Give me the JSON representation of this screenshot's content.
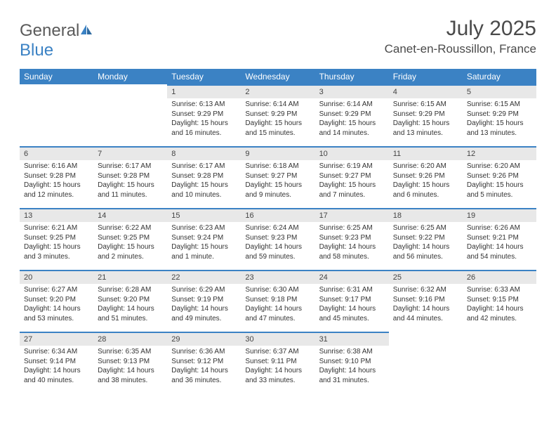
{
  "brand": {
    "name_a": "General",
    "name_b": "Blue"
  },
  "title": "July 2025",
  "location": "Canet-en-Roussillon, France",
  "colors": {
    "header_bg": "#3b82c4",
    "header_text": "#ffffff",
    "daynum_bg": "#e8e8e8",
    "daynum_border": "#3b82c4",
    "body_text": "#333333",
    "page_bg": "#ffffff"
  },
  "weekdays": [
    "Sunday",
    "Monday",
    "Tuesday",
    "Wednesday",
    "Thursday",
    "Friday",
    "Saturday"
  ],
  "weeks": [
    [
      null,
      null,
      {
        "n": "1",
        "sr": "Sunrise: 6:13 AM",
        "ss": "Sunset: 9:29 PM",
        "d1": "Daylight: 15 hours",
        "d2": "and 16 minutes."
      },
      {
        "n": "2",
        "sr": "Sunrise: 6:14 AM",
        "ss": "Sunset: 9:29 PM",
        "d1": "Daylight: 15 hours",
        "d2": "and 15 minutes."
      },
      {
        "n": "3",
        "sr": "Sunrise: 6:14 AM",
        "ss": "Sunset: 9:29 PM",
        "d1": "Daylight: 15 hours",
        "d2": "and 14 minutes."
      },
      {
        "n": "4",
        "sr": "Sunrise: 6:15 AM",
        "ss": "Sunset: 9:29 PM",
        "d1": "Daylight: 15 hours",
        "d2": "and 13 minutes."
      },
      {
        "n": "5",
        "sr": "Sunrise: 6:15 AM",
        "ss": "Sunset: 9:29 PM",
        "d1": "Daylight: 15 hours",
        "d2": "and 13 minutes."
      }
    ],
    [
      {
        "n": "6",
        "sr": "Sunrise: 6:16 AM",
        "ss": "Sunset: 9:28 PM",
        "d1": "Daylight: 15 hours",
        "d2": "and 12 minutes."
      },
      {
        "n": "7",
        "sr": "Sunrise: 6:17 AM",
        "ss": "Sunset: 9:28 PM",
        "d1": "Daylight: 15 hours",
        "d2": "and 11 minutes."
      },
      {
        "n": "8",
        "sr": "Sunrise: 6:17 AM",
        "ss": "Sunset: 9:28 PM",
        "d1": "Daylight: 15 hours",
        "d2": "and 10 minutes."
      },
      {
        "n": "9",
        "sr": "Sunrise: 6:18 AM",
        "ss": "Sunset: 9:27 PM",
        "d1": "Daylight: 15 hours",
        "d2": "and 9 minutes."
      },
      {
        "n": "10",
        "sr": "Sunrise: 6:19 AM",
        "ss": "Sunset: 9:27 PM",
        "d1": "Daylight: 15 hours",
        "d2": "and 7 minutes."
      },
      {
        "n": "11",
        "sr": "Sunrise: 6:20 AM",
        "ss": "Sunset: 9:26 PM",
        "d1": "Daylight: 15 hours",
        "d2": "and 6 minutes."
      },
      {
        "n": "12",
        "sr": "Sunrise: 6:20 AM",
        "ss": "Sunset: 9:26 PM",
        "d1": "Daylight: 15 hours",
        "d2": "and 5 minutes."
      }
    ],
    [
      {
        "n": "13",
        "sr": "Sunrise: 6:21 AM",
        "ss": "Sunset: 9:25 PM",
        "d1": "Daylight: 15 hours",
        "d2": "and 3 minutes."
      },
      {
        "n": "14",
        "sr": "Sunrise: 6:22 AM",
        "ss": "Sunset: 9:25 PM",
        "d1": "Daylight: 15 hours",
        "d2": "and 2 minutes."
      },
      {
        "n": "15",
        "sr": "Sunrise: 6:23 AM",
        "ss": "Sunset: 9:24 PM",
        "d1": "Daylight: 15 hours",
        "d2": "and 1 minute."
      },
      {
        "n": "16",
        "sr": "Sunrise: 6:24 AM",
        "ss": "Sunset: 9:23 PM",
        "d1": "Daylight: 14 hours",
        "d2": "and 59 minutes."
      },
      {
        "n": "17",
        "sr": "Sunrise: 6:25 AM",
        "ss": "Sunset: 9:23 PM",
        "d1": "Daylight: 14 hours",
        "d2": "and 58 minutes."
      },
      {
        "n": "18",
        "sr": "Sunrise: 6:25 AM",
        "ss": "Sunset: 9:22 PM",
        "d1": "Daylight: 14 hours",
        "d2": "and 56 minutes."
      },
      {
        "n": "19",
        "sr": "Sunrise: 6:26 AM",
        "ss": "Sunset: 9:21 PM",
        "d1": "Daylight: 14 hours",
        "d2": "and 54 minutes."
      }
    ],
    [
      {
        "n": "20",
        "sr": "Sunrise: 6:27 AM",
        "ss": "Sunset: 9:20 PM",
        "d1": "Daylight: 14 hours",
        "d2": "and 53 minutes."
      },
      {
        "n": "21",
        "sr": "Sunrise: 6:28 AM",
        "ss": "Sunset: 9:20 PM",
        "d1": "Daylight: 14 hours",
        "d2": "and 51 minutes."
      },
      {
        "n": "22",
        "sr": "Sunrise: 6:29 AM",
        "ss": "Sunset: 9:19 PM",
        "d1": "Daylight: 14 hours",
        "d2": "and 49 minutes."
      },
      {
        "n": "23",
        "sr": "Sunrise: 6:30 AM",
        "ss": "Sunset: 9:18 PM",
        "d1": "Daylight: 14 hours",
        "d2": "and 47 minutes."
      },
      {
        "n": "24",
        "sr": "Sunrise: 6:31 AM",
        "ss": "Sunset: 9:17 PM",
        "d1": "Daylight: 14 hours",
        "d2": "and 45 minutes."
      },
      {
        "n": "25",
        "sr": "Sunrise: 6:32 AM",
        "ss": "Sunset: 9:16 PM",
        "d1": "Daylight: 14 hours",
        "d2": "and 44 minutes."
      },
      {
        "n": "26",
        "sr": "Sunrise: 6:33 AM",
        "ss": "Sunset: 9:15 PM",
        "d1": "Daylight: 14 hours",
        "d2": "and 42 minutes."
      }
    ],
    [
      {
        "n": "27",
        "sr": "Sunrise: 6:34 AM",
        "ss": "Sunset: 9:14 PM",
        "d1": "Daylight: 14 hours",
        "d2": "and 40 minutes."
      },
      {
        "n": "28",
        "sr": "Sunrise: 6:35 AM",
        "ss": "Sunset: 9:13 PM",
        "d1": "Daylight: 14 hours",
        "d2": "and 38 minutes."
      },
      {
        "n": "29",
        "sr": "Sunrise: 6:36 AM",
        "ss": "Sunset: 9:12 PM",
        "d1": "Daylight: 14 hours",
        "d2": "and 36 minutes."
      },
      {
        "n": "30",
        "sr": "Sunrise: 6:37 AM",
        "ss": "Sunset: 9:11 PM",
        "d1": "Daylight: 14 hours",
        "d2": "and 33 minutes."
      },
      {
        "n": "31",
        "sr": "Sunrise: 6:38 AM",
        "ss": "Sunset: 9:10 PM",
        "d1": "Daylight: 14 hours",
        "d2": "and 31 minutes."
      },
      null,
      null
    ]
  ]
}
